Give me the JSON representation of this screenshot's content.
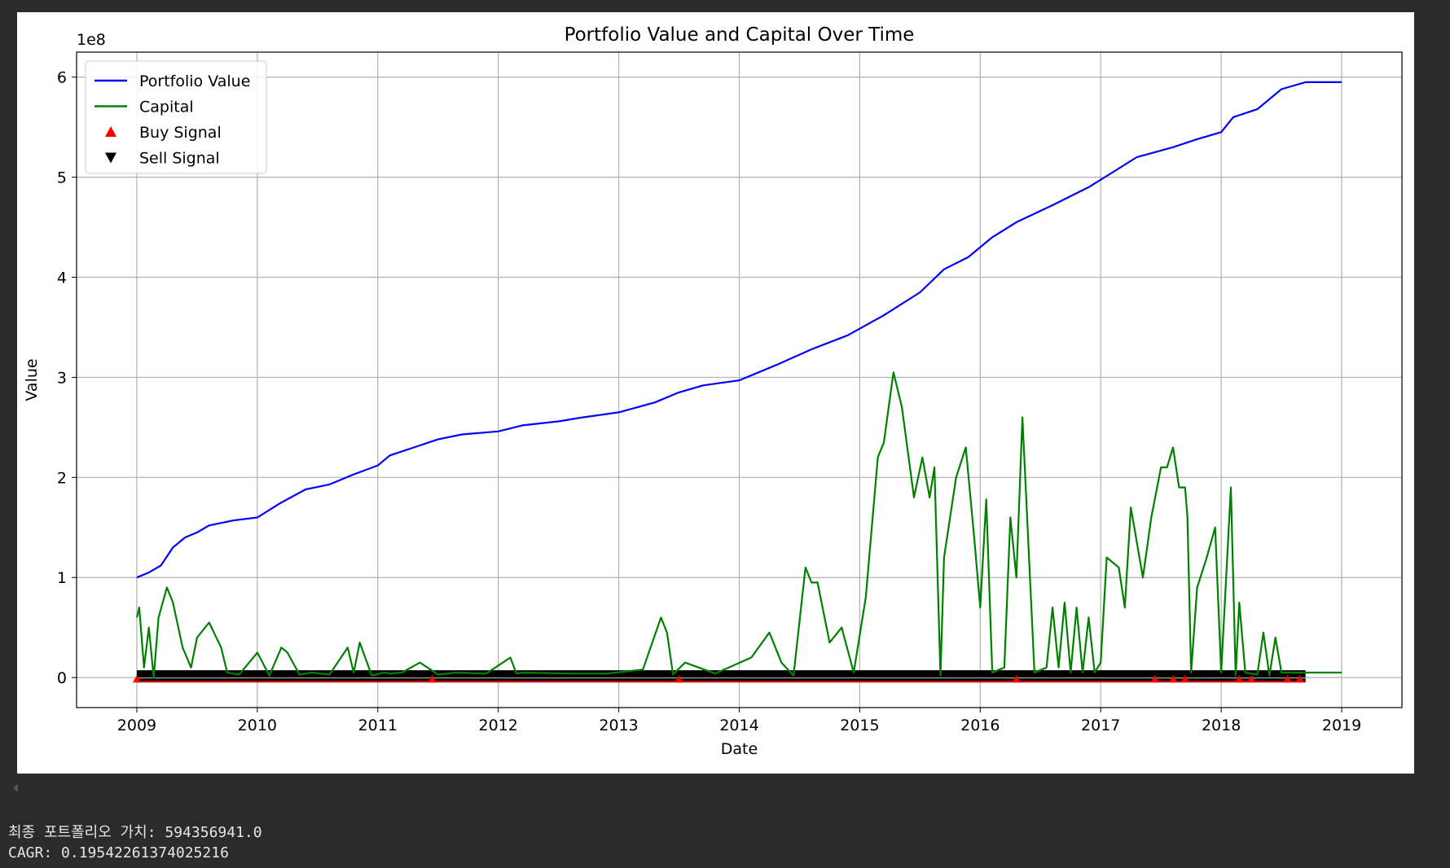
{
  "chart_data": {
    "type": "line",
    "title": "Portfolio Value and Capital Over Time",
    "xlabel": "Date",
    "ylabel": "Value",
    "offset_label": "1e8",
    "x_ticks": [
      "2009",
      "2010",
      "2011",
      "2012",
      "2013",
      "2014",
      "2015",
      "2016",
      "2017",
      "2018",
      "2019"
    ],
    "y_ticks": [
      0,
      1,
      2,
      3,
      4,
      5,
      6
    ],
    "xlim": [
      2008.5,
      2019.5
    ],
    "ylim": [
      -0.3,
      6.25
    ],
    "grid": true,
    "legend": "top-left",
    "legend_entries": [
      {
        "label": "Portfolio Value",
        "marker": "line",
        "color": "#0000ff"
      },
      {
        "label": "Capital",
        "marker": "line",
        "color": "#008000"
      },
      {
        "label": "Buy Signal",
        "marker": "triangle-up",
        "color": "#ff0000"
      },
      {
        "label": "Sell Signal",
        "marker": "triangle-down",
        "color": "#000000"
      }
    ],
    "series": [
      {
        "name": "Portfolio Value",
        "color": "#0000ff",
        "x": [
          2009.0,
          2009.1,
          2009.2,
          2009.3,
          2009.4,
          2009.5,
          2009.6,
          2009.8,
          2010.0,
          2010.2,
          2010.4,
          2010.6,
          2010.8,
          2011.0,
          2011.1,
          2011.3,
          2011.5,
          2011.7,
          2012.0,
          2012.2,
          2012.5,
          2012.7,
          2013.0,
          2013.3,
          2013.5,
          2013.7,
          2014.0,
          2014.3,
          2014.6,
          2014.9,
          2015.2,
          2015.5,
          2015.7,
          2015.9,
          2016.1,
          2016.3,
          2016.6,
          2016.9,
          2017.1,
          2017.3,
          2017.6,
          2017.8,
          2018.0,
          2018.1,
          2018.3,
          2018.5,
          2018.7,
          2019.0
        ],
        "y": [
          1.0,
          1.05,
          1.12,
          1.3,
          1.4,
          1.45,
          1.52,
          1.57,
          1.6,
          1.75,
          1.88,
          1.93,
          2.03,
          2.12,
          2.22,
          2.3,
          2.38,
          2.43,
          2.46,
          2.52,
          2.56,
          2.6,
          2.65,
          2.75,
          2.85,
          2.92,
          2.97,
          3.12,
          3.28,
          3.42,
          3.62,
          3.85,
          4.08,
          4.2,
          4.4,
          4.55,
          4.72,
          4.9,
          5.05,
          5.2,
          5.3,
          5.38,
          5.45,
          5.6,
          5.68,
          5.88,
          5.95,
          5.95
        ]
      },
      {
        "name": "Capital",
        "color": "#008000",
        "x": [
          2009.0,
          2009.02,
          2009.06,
          2009.1,
          2009.14,
          2009.18,
          2009.25,
          2009.3,
          2009.38,
          2009.45,
          2009.5,
          2009.6,
          2009.7,
          2009.75,
          2009.85,
          2010.0,
          2010.1,
          2010.2,
          2010.25,
          2010.35,
          2010.45,
          2010.6,
          2010.75,
          2010.8,
          2010.85,
          2010.95,
          2011.05,
          2011.1,
          2011.2,
          2011.35,
          2011.5,
          2011.65,
          2011.9,
          2012.1,
          2012.15,
          2012.2,
          2012.6,
          2012.9,
          2013.2,
          2013.35,
          2013.4,
          2013.45,
          2013.55,
          2013.8,
          2014.1,
          2014.25,
          2014.35,
          2014.45,
          2014.55,
          2014.6,
          2014.65,
          2014.75,
          2014.85,
          2014.95,
          2015.05,
          2015.15,
          2015.2,
          2015.28,
          2015.35,
          2015.45,
          2015.52,
          2015.58,
          2015.62,
          2015.67,
          2015.7,
          2015.8,
          2015.88,
          2015.95,
          2016.0,
          2016.05,
          2016.1,
          2016.2,
          2016.25,
          2016.3,
          2016.35,
          2016.45,
          2016.55,
          2016.6,
          2016.65,
          2016.7,
          2016.75,
          2016.8,
          2016.85,
          2016.9,
          2016.95,
          2017.0,
          2017.05,
          2017.15,
          2017.2,
          2017.25,
          2017.35,
          2017.42,
          2017.5,
          2017.55,
          2017.6,
          2017.65,
          2017.7,
          2017.72,
          2017.75,
          2017.8,
          2017.88,
          2017.95,
          2018.0,
          2018.05,
          2018.08,
          2018.12,
          2018.15,
          2018.2,
          2018.3,
          2018.35,
          2018.4,
          2018.45,
          2018.5,
          2018.6,
          2018.7,
          2019.0
        ],
        "y": [
          0.6,
          0.7,
          0.1,
          0.5,
          0.0,
          0.6,
          0.9,
          0.75,
          0.3,
          0.1,
          0.4,
          0.55,
          0.3,
          0.05,
          0.03,
          0.25,
          0.02,
          0.3,
          0.25,
          0.03,
          0.05,
          0.03,
          0.3,
          0.05,
          0.35,
          0.02,
          0.05,
          0.04,
          0.05,
          0.15,
          0.03,
          0.05,
          0.04,
          0.2,
          0.04,
          0.05,
          0.04,
          0.04,
          0.08,
          0.6,
          0.45,
          0.03,
          0.15,
          0.04,
          0.2,
          0.45,
          0.15,
          0.02,
          1.1,
          0.95,
          0.95,
          0.35,
          0.5,
          0.05,
          0.8,
          2.2,
          2.35,
          3.05,
          2.7,
          1.8,
          2.2,
          1.8,
          2.1,
          0.02,
          1.2,
          2.0,
          2.3,
          1.4,
          0.7,
          1.78,
          0.05,
          0.1,
          1.6,
          1.0,
          2.6,
          0.05,
          0.1,
          0.7,
          0.1,
          0.75,
          0.05,
          0.7,
          0.05,
          0.6,
          0.05,
          0.15,
          1.2,
          1.1,
          0.7,
          1.7,
          1.0,
          1.6,
          2.1,
          2.1,
          2.3,
          1.9,
          1.9,
          1.6,
          0.05,
          0.9,
          1.2,
          1.5,
          0.05,
          1.2,
          1.9,
          0.02,
          0.75,
          0.05,
          0.03,
          0.45,
          0.02,
          0.4,
          0.05,
          0.05,
          0.05,
          0.05
        ]
      }
    ],
    "signal_band": {
      "x_start": 2009.0,
      "x_end": 2018.7
    },
    "buy_signal_x": [
      2009.0,
      2011.45,
      2013.5,
      2016.3,
      2017.45,
      2017.6,
      2017.7,
      2018.15,
      2018.25,
      2018.55,
      2018.65
    ]
  },
  "output": {
    "line1": "최종 포트폴리오 가치: 594356941.0",
    "line2": "CAGR: 0.19542261374025216"
  }
}
